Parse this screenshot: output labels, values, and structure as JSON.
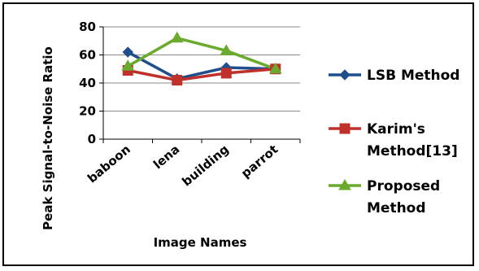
{
  "chart_data": {
    "type": "line",
    "title": "",
    "xlabel": "Image Names",
    "ylabel": "Peak Signal-to-Noise Ratio",
    "categories": [
      "baboon",
      "lena",
      "building",
      "parrot"
    ],
    "ylim": [
      0,
      80
    ],
    "yticks": [
      0,
      20,
      40,
      60,
      80
    ],
    "grid": true,
    "legend_position": "right",
    "series": [
      {
        "name": "LSB Method",
        "name_lines": [
          "LSB Method"
        ],
        "values": [
          62,
          43,
          51,
          50
        ],
        "color": "#1f4e8c",
        "marker": "diamond"
      },
      {
        "name": "Karim's Method[13]",
        "name_lines": [
          "Karim's",
          "Method[13]"
        ],
        "values": [
          49,
          42,
          47,
          50
        ],
        "color": "#c0302b",
        "marker": "square"
      },
      {
        "name": "Proposed Method",
        "name_lines": [
          "Proposed",
          "Method"
        ],
        "values": [
          52,
          72,
          63,
          50
        ],
        "color": "#6aaa2e",
        "marker": "triangle"
      }
    ]
  }
}
